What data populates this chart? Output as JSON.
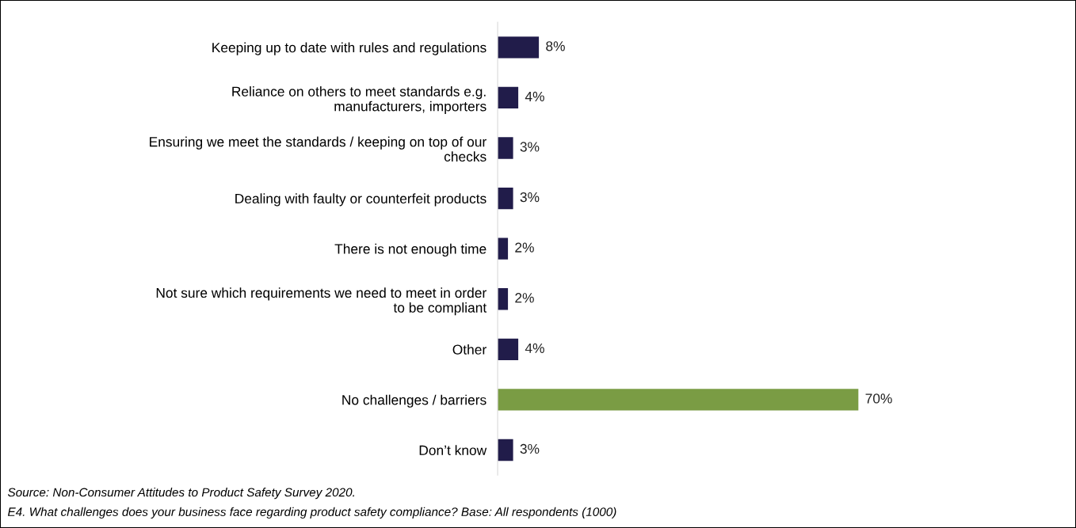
{
  "chart_data": {
    "type": "bar",
    "orientation": "horizontal",
    "categories": [
      "Keeping up to date with rules and regulations",
      "Reliance on others to meet standards e.g.\nmanufacturers, importers",
      "Ensuring we meet the standards / keeping on top of our\nchecks",
      "Dealing with faulty or counterfeit products",
      "There is not enough time",
      "Not sure which requirements we need to meet in order\nto be compliant",
      "Other",
      "No challenges / barriers",
      "Don’t know"
    ],
    "values": [
      8,
      4,
      3,
      3,
      2,
      2,
      4,
      70,
      3
    ],
    "colors": [
      "#211c4a",
      "#211c4a",
      "#211c4a",
      "#211c4a",
      "#211c4a",
      "#211c4a",
      "#211c4a",
      "#7a9c44",
      "#211c4a"
    ],
    "value_labels": [
      "8%",
      "4%",
      "3%",
      "3%",
      "2%",
      "2%",
      "4%",
      "70%",
      "3%"
    ],
    "tick_labels": "y",
    "annotations": [
      "Source: Non-Consumer Attitudes to Product Safety Survey 2020.",
      "E4. What challenges does your business face regarding product safety compliance? Base: All respondents (1000)"
    ]
  }
}
